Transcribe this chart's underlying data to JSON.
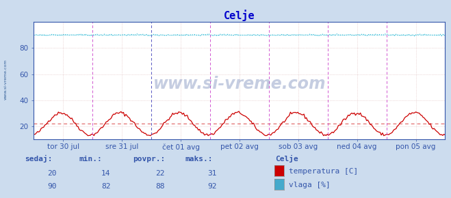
{
  "title": "Celje",
  "title_color": "#0000cc",
  "bg_color": "#ccdcee",
  "plot_bg_color": "#ffffff",
  "ylim": [
    10,
    100
  ],
  "yticks": [
    20,
    40,
    60,
    80
  ],
  "grid_color_x": "#ddbbbb",
  "grid_color_y": "#ddbbbb",
  "temp_color": "#cc0000",
  "humidity_color": "#00aacc",
  "temp_avg_line": 22,
  "hum_avg_line": 90,
  "vline_color_mag": "#cc44cc",
  "vline_color_dark": "#4444bb",
  "x_tick_labels": [
    "tor 30 jul",
    "sre 31 jul",
    "čet 01 avg",
    "pet 02 avg",
    "sob 03 avg",
    "ned 04 avg",
    "pon 05 avg"
  ],
  "watermark": "www.si-vreme.com",
  "watermark_color": "#1a3a8a",
  "watermark_alpha": 0.25,
  "legend_title": "Celje",
  "legend_label1": "temperatura [C]",
  "legend_label2": "vlaga [%]",
  "legend_color1": "#cc0000",
  "legend_color2": "#44aacc",
  "table_header": [
    "sedaj:",
    "min.:",
    "povpr.:",
    "maks.:"
  ],
  "table_row1": [
    20,
    14,
    22,
    31
  ],
  "table_row2": [
    90,
    82,
    88,
    92
  ],
  "sidebar_label": "www.si-vreme.com",
  "sidebar_color": "#1a4a8a",
  "label_color": "#3355aa"
}
